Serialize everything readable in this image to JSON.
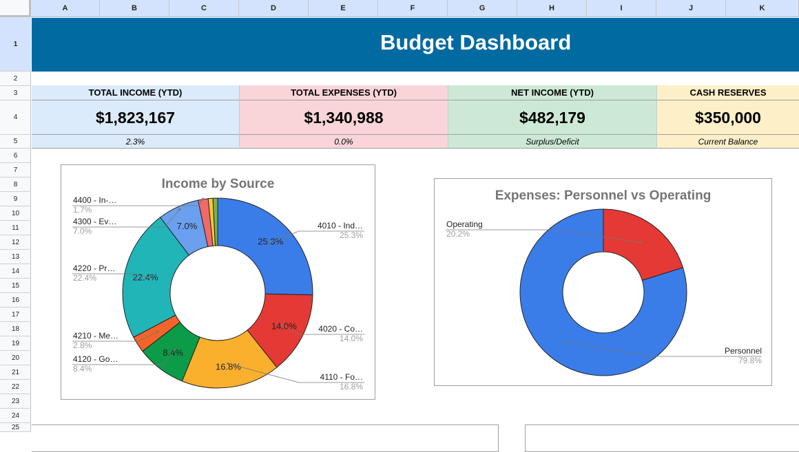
{
  "columns": [
    "A",
    "B",
    "C",
    "D",
    "E",
    "F",
    "G",
    "H",
    "I",
    "J",
    "K"
  ],
  "rows": [
    "1",
    "2",
    "3",
    "4",
    "5",
    "6",
    "7",
    "8",
    "9",
    "10",
    "11",
    "12",
    "13",
    "14",
    "15",
    "16",
    "17",
    "18",
    "19",
    "20",
    "21",
    "22",
    "23",
    "24",
    "25"
  ],
  "dashboard": {
    "title": "Budget Dashboard"
  },
  "kpis": [
    {
      "label": "TOTAL INCOME (YTD)",
      "value": "$1,823,167",
      "sub": "2.3%",
      "bg": "#dcebfb"
    },
    {
      "label": "TOTAL EXPENSES (YTD)",
      "value": "$1,340,988",
      "sub": "0.0%",
      "bg": "#f9d5da"
    },
    {
      "label": "NET INCOME (YTD)",
      "value": "$482,179",
      "sub": "Surplus/Deficit",
      "bg": "#cde9d6"
    },
    {
      "label": "CASH RESERVES",
      "value": "$350,000",
      "sub": "Current Balance",
      "bg": "#fdf0c8"
    }
  ],
  "chart_data": [
    {
      "type": "pie",
      "title": "Income by Source",
      "donut": true,
      "slices": [
        {
          "name": "4010 - Ind…",
          "value": 25.3,
          "label": "25.3%",
          "color": "#3b7de8"
        },
        {
          "name": "4020 - Co…",
          "value": 14.0,
          "label": "14.0%",
          "color": "#e53935"
        },
        {
          "name": "4110 - Fo…",
          "value": 16.8,
          "label": "16.8%",
          "color": "#fbb02d"
        },
        {
          "name": "4120 - Go…",
          "value": 8.4,
          "label": "8.4%",
          "color": "#0c9b48"
        },
        {
          "name": "4210 - Me…",
          "value": 2.8,
          "label": "2.8%",
          "color": "#f4632a"
        },
        {
          "name": "4220 - Pr…",
          "value": 22.4,
          "label": "22.4%",
          "color": "#21b5b8"
        },
        {
          "name": "4300 - Ev…",
          "value": 7.0,
          "label": "7.0%",
          "color": "#6aa0ef"
        },
        {
          "name": "4400 - In-…",
          "value": 1.7,
          "label": "1.7%",
          "color": "#f06a6a"
        },
        {
          "name": "",
          "value": 0.8,
          "label": "",
          "color": "#fbc43c"
        },
        {
          "name": "",
          "value": 0.8,
          "label": "",
          "color": "#7cb342"
        }
      ]
    },
    {
      "type": "pie",
      "title": "Expenses: Personnel vs Operating",
      "donut": true,
      "slices": [
        {
          "name": "Operating",
          "value": 20.2,
          "label": "20.2%",
          "color": "#e53935"
        },
        {
          "name": "Personnel",
          "value": 79.8,
          "label": "79.8%",
          "color": "#3b7de8"
        }
      ]
    }
  ]
}
